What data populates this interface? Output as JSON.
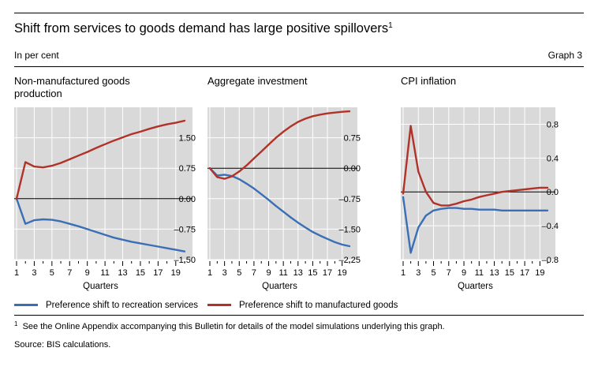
{
  "header": {
    "title": "Shift from services to goods demand has large positive spillovers",
    "title_footnote_mark": "1",
    "unit": "In per cent",
    "graph_label": "Graph 3"
  },
  "colors": {
    "blue": "#3a6fb5",
    "red": "#b03228",
    "panel_bg": "#d9d9d9",
    "grid": "#ffffff"
  },
  "chart_data": [
    {
      "type": "line",
      "title": "Non-manufactured goods production",
      "xlabel": "Quarters",
      "x": [
        1,
        2,
        3,
        4,
        5,
        6,
        7,
        8,
        9,
        10,
        11,
        12,
        13,
        14,
        15,
        16,
        17,
        18,
        19,
        20
      ],
      "x_ticks": [
        "1",
        "3",
        "5",
        "7",
        "9",
        "11",
        "13",
        "15",
        "17",
        "19"
      ],
      "ylim": [
        -1.5,
        2.25
      ],
      "y_ticks": [
        1.5,
        0.75,
        0.0,
        -0.75,
        -1.5
      ],
      "y_tick_labels": [
        "1.50",
        "0.75",
        "0.00",
        "–0.75",
        "–1.50"
      ],
      "y_axis_side": "right",
      "grid": true,
      "series": [
        {
          "name": "Preference shift to recreation services",
          "color": "#3a6fb5",
          "values": [
            0.0,
            -0.62,
            -0.53,
            -0.51,
            -0.52,
            -0.56,
            -0.62,
            -0.68,
            -0.75,
            -0.82,
            -0.89,
            -0.96,
            -1.01,
            -1.06,
            -1.1,
            -1.14,
            -1.18,
            -1.22,
            -1.26,
            -1.3
          ]
        },
        {
          "name": "Preference shift to manufactured goods",
          "color": "#b03228",
          "values": [
            0.0,
            0.9,
            0.79,
            0.77,
            0.81,
            0.88,
            0.97,
            1.06,
            1.15,
            1.25,
            1.34,
            1.43,
            1.51,
            1.59,
            1.65,
            1.72,
            1.78,
            1.83,
            1.87,
            1.92
          ]
        }
      ]
    },
    {
      "type": "line",
      "title": "Aggregate investment",
      "xlabel": "Quarters",
      "x": [
        1,
        2,
        3,
        4,
        5,
        6,
        7,
        8,
        9,
        10,
        11,
        12,
        13,
        14,
        15,
        16,
        17,
        18,
        19,
        20
      ],
      "x_ticks": [
        "1",
        "3",
        "5",
        "7",
        "9",
        "11",
        "13",
        "15",
        "17",
        "19"
      ],
      "ylim": [
        -2.25,
        1.5
      ],
      "y_ticks": [
        0.75,
        0.0,
        -0.75,
        -1.5,
        -2.25
      ],
      "y_tick_labels": [
        "0.75",
        "0.00",
        "–0.75",
        "–1.50",
        "–2.25"
      ],
      "y_axis_side": "right",
      "grid": true,
      "series": [
        {
          "name": "Preference shift to recreation services",
          "color": "#3a6fb5",
          "values": [
            0.0,
            -0.18,
            -0.16,
            -0.19,
            -0.27,
            -0.38,
            -0.5,
            -0.64,
            -0.78,
            -0.93,
            -1.07,
            -1.21,
            -1.34,
            -1.46,
            -1.57,
            -1.66,
            -1.74,
            -1.82,
            -1.88,
            -1.92
          ]
        },
        {
          "name": "Preference shift to manufactured goods",
          "color": "#b03228",
          "values": [
            0.0,
            -0.22,
            -0.26,
            -0.2,
            -0.08,
            0.07,
            0.24,
            0.41,
            0.58,
            0.75,
            0.9,
            1.03,
            1.14,
            1.22,
            1.28,
            1.32,
            1.35,
            1.37,
            1.39,
            1.4
          ]
        }
      ]
    },
    {
      "type": "line",
      "title": "CPI inflation",
      "xlabel": "Quarters",
      "x": [
        1,
        2,
        3,
        4,
        5,
        6,
        7,
        8,
        9,
        10,
        11,
        12,
        13,
        14,
        15,
        16,
        17,
        18,
        19,
        20
      ],
      "x_ticks": [
        "1",
        "3",
        "5",
        "7",
        "9",
        "11",
        "13",
        "15",
        "17",
        "19"
      ],
      "ylim": [
        -0.8,
        1.0
      ],
      "y_ticks": [
        0.8,
        0.4,
        0.0,
        -0.4,
        -0.8
      ],
      "y_tick_labels": [
        "0.8",
        "0.4",
        "0.0",
        "–0.4",
        "–0.8"
      ],
      "y_axis_side": "right",
      "grid": true,
      "series": [
        {
          "name": "Preference shift to recreation services",
          "color": "#3a6fb5",
          "values": [
            -0.06,
            -0.72,
            -0.42,
            -0.28,
            -0.22,
            -0.2,
            -0.19,
            -0.19,
            -0.2,
            -0.2,
            -0.21,
            -0.21,
            -0.21,
            -0.22,
            -0.22,
            -0.22,
            -0.22,
            -0.22,
            -0.22,
            -0.22
          ]
        },
        {
          "name": "Preference shift to manufactured goods",
          "color": "#b03228",
          "values": [
            -0.02,
            0.78,
            0.24,
            0.0,
            -0.13,
            -0.16,
            -0.16,
            -0.14,
            -0.11,
            -0.09,
            -0.06,
            -0.04,
            -0.02,
            0.0,
            0.01,
            0.02,
            0.03,
            0.04,
            0.05,
            0.05
          ]
        }
      ]
    }
  ],
  "legend": {
    "blue_label": "Preference shift to recreation services",
    "red_label": "Preference shift to manufactured goods"
  },
  "footnote": {
    "mark": "1",
    "text": "See the Online Appendix accompanying this Bulletin for details of the model simulations underlying this graph."
  },
  "source": "Source: BIS calculations."
}
